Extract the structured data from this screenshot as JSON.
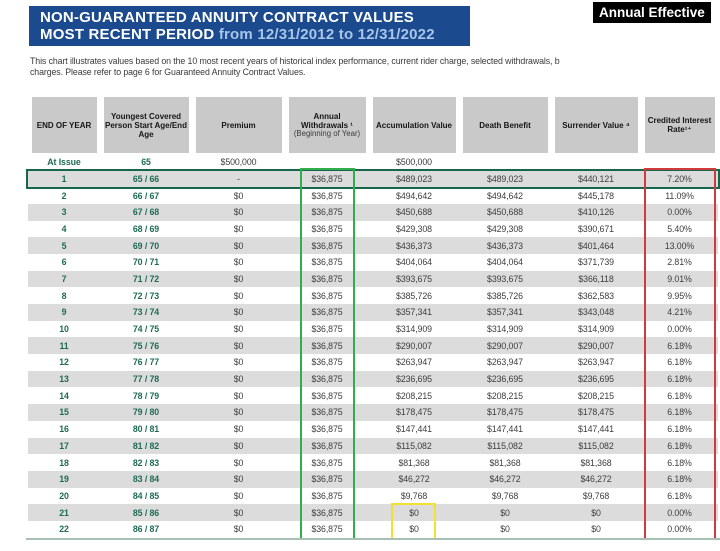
{
  "header": {
    "title_line1": "NON-GUARANTEED ANNUITY CONTRACT VALUES",
    "title_line2_bold": "MOST RECENT PERIOD",
    "title_line2_rest": " from 12/31/2012 to 12/31/2022",
    "corner_tag": "Annual Effective",
    "banner_color": "#1b4a8f",
    "tag_color": "#000000"
  },
  "intro": {
    "line1": "This chart illustrates values based on the 10 most recent years of historical index performance, current rider charge, selected withdrawals, b",
    "line2": "charges. Please refer to page 6 for Guaranteed Annuity Contract Values."
  },
  "table": {
    "columns": [
      {
        "key": "end-of-year",
        "label": "END OF YEAR"
      },
      {
        "key": "youngest-covered-person",
        "label": "Youngest Covered Person Start Age/End Age"
      },
      {
        "key": "premium",
        "label": "Premium"
      },
      {
        "key": "annual-withdrawals",
        "label": "Annual Withdrawals ¹",
        "sub": "(Beginning of Year)"
      },
      {
        "key": "accumulation-value",
        "label": "Accumulation Value"
      },
      {
        "key": "death-benefit",
        "label": "Death Benefit"
      },
      {
        "key": "surrender-value",
        "label": "Surrender Value ⁴"
      },
      {
        "key": "credited-interest-rate",
        "label": "Credited Interest Rate¹⁺"
      }
    ],
    "at_issue_row": [
      "At Issue",
      "65",
      "$500,000",
      "",
      "$500,000",
      "",
      "",
      ""
    ],
    "rows": [
      [
        "1",
        "65 / 66",
        "-",
        "$36,875",
        "$489,023",
        "$489,023",
        "$440,121",
        "7.20%"
      ],
      [
        "2",
        "66 / 67",
        "$0",
        "$36,875",
        "$494,642",
        "$494,642",
        "$445,178",
        "11.09%"
      ],
      [
        "3",
        "67 / 68",
        "$0",
        "$36,875",
        "$450,688",
        "$450,688",
        "$410,126",
        "0.00%"
      ],
      [
        "4",
        "68 / 69",
        "$0",
        "$36,875",
        "$429,308",
        "$429,308",
        "$390,671",
        "5.40%"
      ],
      [
        "5",
        "69 / 70",
        "$0",
        "$36,875",
        "$436,373",
        "$436,373",
        "$401,464",
        "13.00%"
      ],
      [
        "6",
        "70 / 71",
        "$0",
        "$36,875",
        "$404,064",
        "$404,064",
        "$371,739",
        "2.81%"
      ],
      [
        "7",
        "71 / 72",
        "$0",
        "$36,875",
        "$393,675",
        "$393,675",
        "$366,118",
        "9.01%"
      ],
      [
        "8",
        "72 / 73",
        "$0",
        "$36,875",
        "$385,726",
        "$385,726",
        "$362,583",
        "9.95%"
      ],
      [
        "9",
        "73 / 74",
        "$0",
        "$36,875",
        "$357,341",
        "$357,341",
        "$343,048",
        "4.21%"
      ],
      [
        "10",
        "74 / 75",
        "$0",
        "$36,875",
        "$314,909",
        "$314,909",
        "$314,909",
        "0.00%"
      ],
      [
        "11",
        "75 / 76",
        "$0",
        "$36,875",
        "$290,007",
        "$290,007",
        "$290,007",
        "6.18%"
      ],
      [
        "12",
        "76 / 77",
        "$0",
        "$36,875",
        "$263,947",
        "$263,947",
        "$263,947",
        "6.18%"
      ],
      [
        "13",
        "77 / 78",
        "$0",
        "$36,875",
        "$236,695",
        "$236,695",
        "$236,695",
        "6.18%"
      ],
      [
        "14",
        "78 / 79",
        "$0",
        "$36,875",
        "$208,215",
        "$208,215",
        "$208,215",
        "6.18%"
      ],
      [
        "15",
        "79 / 80",
        "$0",
        "$36,875",
        "$178,475",
        "$178,475",
        "$178,475",
        "6.18%"
      ],
      [
        "16",
        "80 / 81",
        "$0",
        "$36,875",
        "$147,441",
        "$147,441",
        "$147,441",
        "6.18%"
      ],
      [
        "17",
        "81 / 82",
        "$0",
        "$36,875",
        "$115,082",
        "$115,082",
        "$115,082",
        "6.18%"
      ],
      [
        "18",
        "82 / 83",
        "$0",
        "$36,875",
        "$81,368",
        "$81,368",
        "$81,368",
        "6.18%"
      ],
      [
        "19",
        "83 / 84",
        "$0",
        "$36,875",
        "$46,272",
        "$46,272",
        "$46,272",
        "6.18%"
      ],
      [
        "20",
        "84 / 85",
        "$0",
        "$36,875",
        "$9,768",
        "$9,768",
        "$9,768",
        "6.18%"
      ],
      [
        "21",
        "85 / 86",
        "$0",
        "$36,875",
        "$0",
        "$0",
        "$0",
        "0.00%"
      ],
      [
        "22",
        "86 / 87",
        "$0",
        "$36,875",
        "$0",
        "$0",
        "$0",
        "0.00%"
      ]
    ],
    "highlight_colors": {
      "first_year_row_outline": "#17654a",
      "withdrawals_column_outline": "#2fae4c",
      "credited_rate_column_outline": "#cf3b3c",
      "zero_accumulation_outline": "#f2e12f"
    }
  }
}
